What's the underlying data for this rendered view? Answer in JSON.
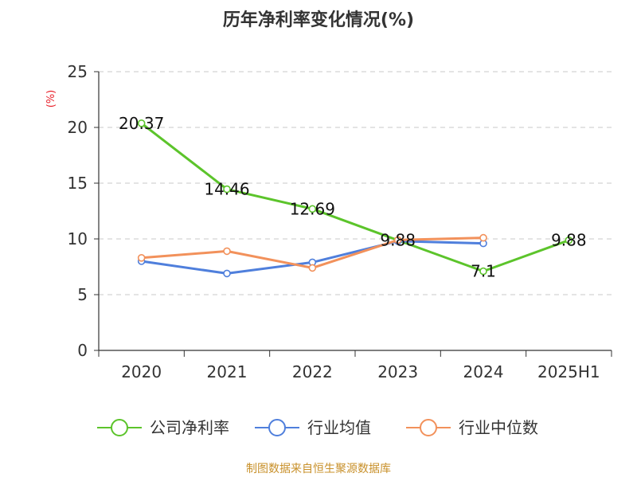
{
  "chart_data": {
    "type": "line",
    "title": "历年净利率变化情况(%)",
    "unit_label": "(%)",
    "categories": [
      "2020",
      "2021",
      "2022",
      "2023",
      "2024",
      "2025H1"
    ],
    "ylim": [
      0,
      25
    ],
    "y_ticks": [
      0,
      5,
      10,
      15,
      20,
      25
    ],
    "grid": true,
    "legend_position": "bottom",
    "series": [
      {
        "name": "公司净利率",
        "color": "#5cc42b",
        "values": [
          20.37,
          14.46,
          12.69,
          9.88,
          7.1,
          9.88
        ],
        "data_labels": [
          "20.37",
          "14.46",
          "12.69",
          "9.88",
          "7.1",
          "9.88"
        ]
      },
      {
        "name": "行业均值",
        "color": "#4f7fdc",
        "values": [
          8.0,
          6.9,
          7.9,
          9.8,
          9.6,
          null
        ]
      },
      {
        "name": "行业中位数",
        "color": "#f2915b",
        "values": [
          8.3,
          8.9,
          7.4,
          9.9,
          10.1,
          null
        ]
      }
    ]
  },
  "footer": {
    "source_note": "制图数据来自恒生聚源数据库"
  }
}
